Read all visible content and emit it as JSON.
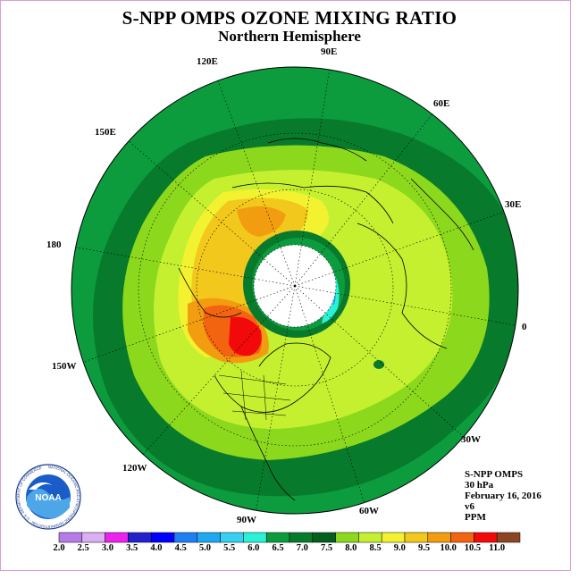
{
  "title": "S-NPP OMPS OZONE MIXING RATIO",
  "subtitle": "Northern Hemisphere",
  "longitude_labels": [
    {
      "id": "lon-90e",
      "text": "90E"
    },
    {
      "id": "lon-120e",
      "text": "120E"
    },
    {
      "id": "lon-60e",
      "text": "60E"
    },
    {
      "id": "lon-150e",
      "text": "150E"
    },
    {
      "id": "lon-30e",
      "text": "30E"
    },
    {
      "id": "lon-180",
      "text": "180"
    },
    {
      "id": "lon-0",
      "text": "0"
    },
    {
      "id": "lon-150w",
      "text": "150W"
    },
    {
      "id": "lon-30w",
      "text": "30W"
    },
    {
      "id": "lon-120w",
      "text": "120W"
    },
    {
      "id": "lon-60w",
      "text": "60W"
    },
    {
      "id": "lon-90w",
      "text": "90W"
    }
  ],
  "info": {
    "instrument": "S-NPP OMPS",
    "level": "30 hPa",
    "date": "February 16, 2016",
    "version": "v6",
    "units": "PPM"
  },
  "logo": {
    "text": "NOAA",
    "ring_text": "NATIONAL OCEANIC AND ATMOSPHERIC ADMINISTRATION · U.S. DEPARTMENT OF COMMERCE"
  },
  "colorbar": {
    "labels": [
      "2.0",
      "2.5",
      "3.0",
      "3.5",
      "4.0",
      "4.5",
      "5.0",
      "5.5",
      "6.0",
      "6.5",
      "7.0",
      "7.5",
      "8.0",
      "8.5",
      "9.0",
      "9.5",
      "10.0",
      "10.5",
      "11.0"
    ],
    "colors": [
      "#b77be8",
      "#dcaef2",
      "#ee22ee",
      "#2222cc",
      "#0000ff",
      "#1e7ff5",
      "#1ea8f0",
      "#36d0f2",
      "#2af2d8",
      "#0c9c3e",
      "#087a2c",
      "#045e1e",
      "#8cd81c",
      "#c4f030",
      "#f2f230",
      "#f2c81c",
      "#f29c10",
      "#f26410",
      "#f20a0a",
      "#8c4624"
    ]
  }
}
